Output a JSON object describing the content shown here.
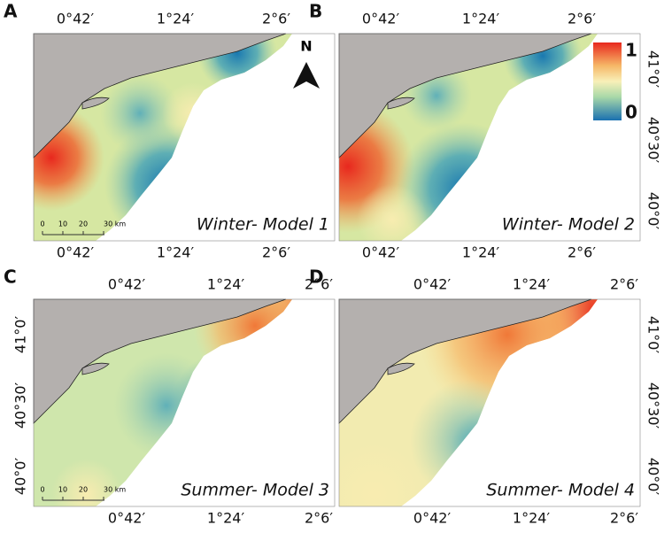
{
  "panels": [
    {
      "letter": "A",
      "title": "Winter- Model 1",
      "top_labels": [
        "0°42′",
        "1°24′",
        "2°6′"
      ],
      "bottom_labels": [
        "0°42′",
        "1°24′",
        "2°6′"
      ]
    },
    {
      "letter": "B",
      "title": "Winter- Model 2",
      "top_labels": [
        "0°42′",
        "1°24′",
        "2°6′"
      ],
      "bottom_labels": [
        "0°42′",
        "1°24′",
        "2°6′"
      ],
      "side_labels": [
        "41°0′",
        "40°30′",
        "40°0′"
      ]
    },
    {
      "letter": "C",
      "title": "Summer- Model 3",
      "top_labels": [
        "0°42′",
        "1°24′",
        "2°6′"
      ],
      "bottom_labels": [
        "0°42′",
        "1°24′",
        "2°6′"
      ],
      "side_labels": [
        "41°0′",
        "40°30′",
        "40°0′"
      ]
    },
    {
      "letter": "D",
      "title": "Summer- Model 4",
      "top_labels": [
        "0°42′",
        "1°24′",
        "2°6′"
      ],
      "bottom_labels": [
        "0°42′",
        "1°24′",
        "2°6′"
      ],
      "side_labels": [
        "41°0′",
        "40°30′",
        "40°0′"
      ]
    }
  ],
  "scale_bar": [
    "0",
    "10",
    "20",
    "30 km"
  ],
  "north": "N",
  "legend": {
    "max": "1",
    "min": "0"
  }
}
